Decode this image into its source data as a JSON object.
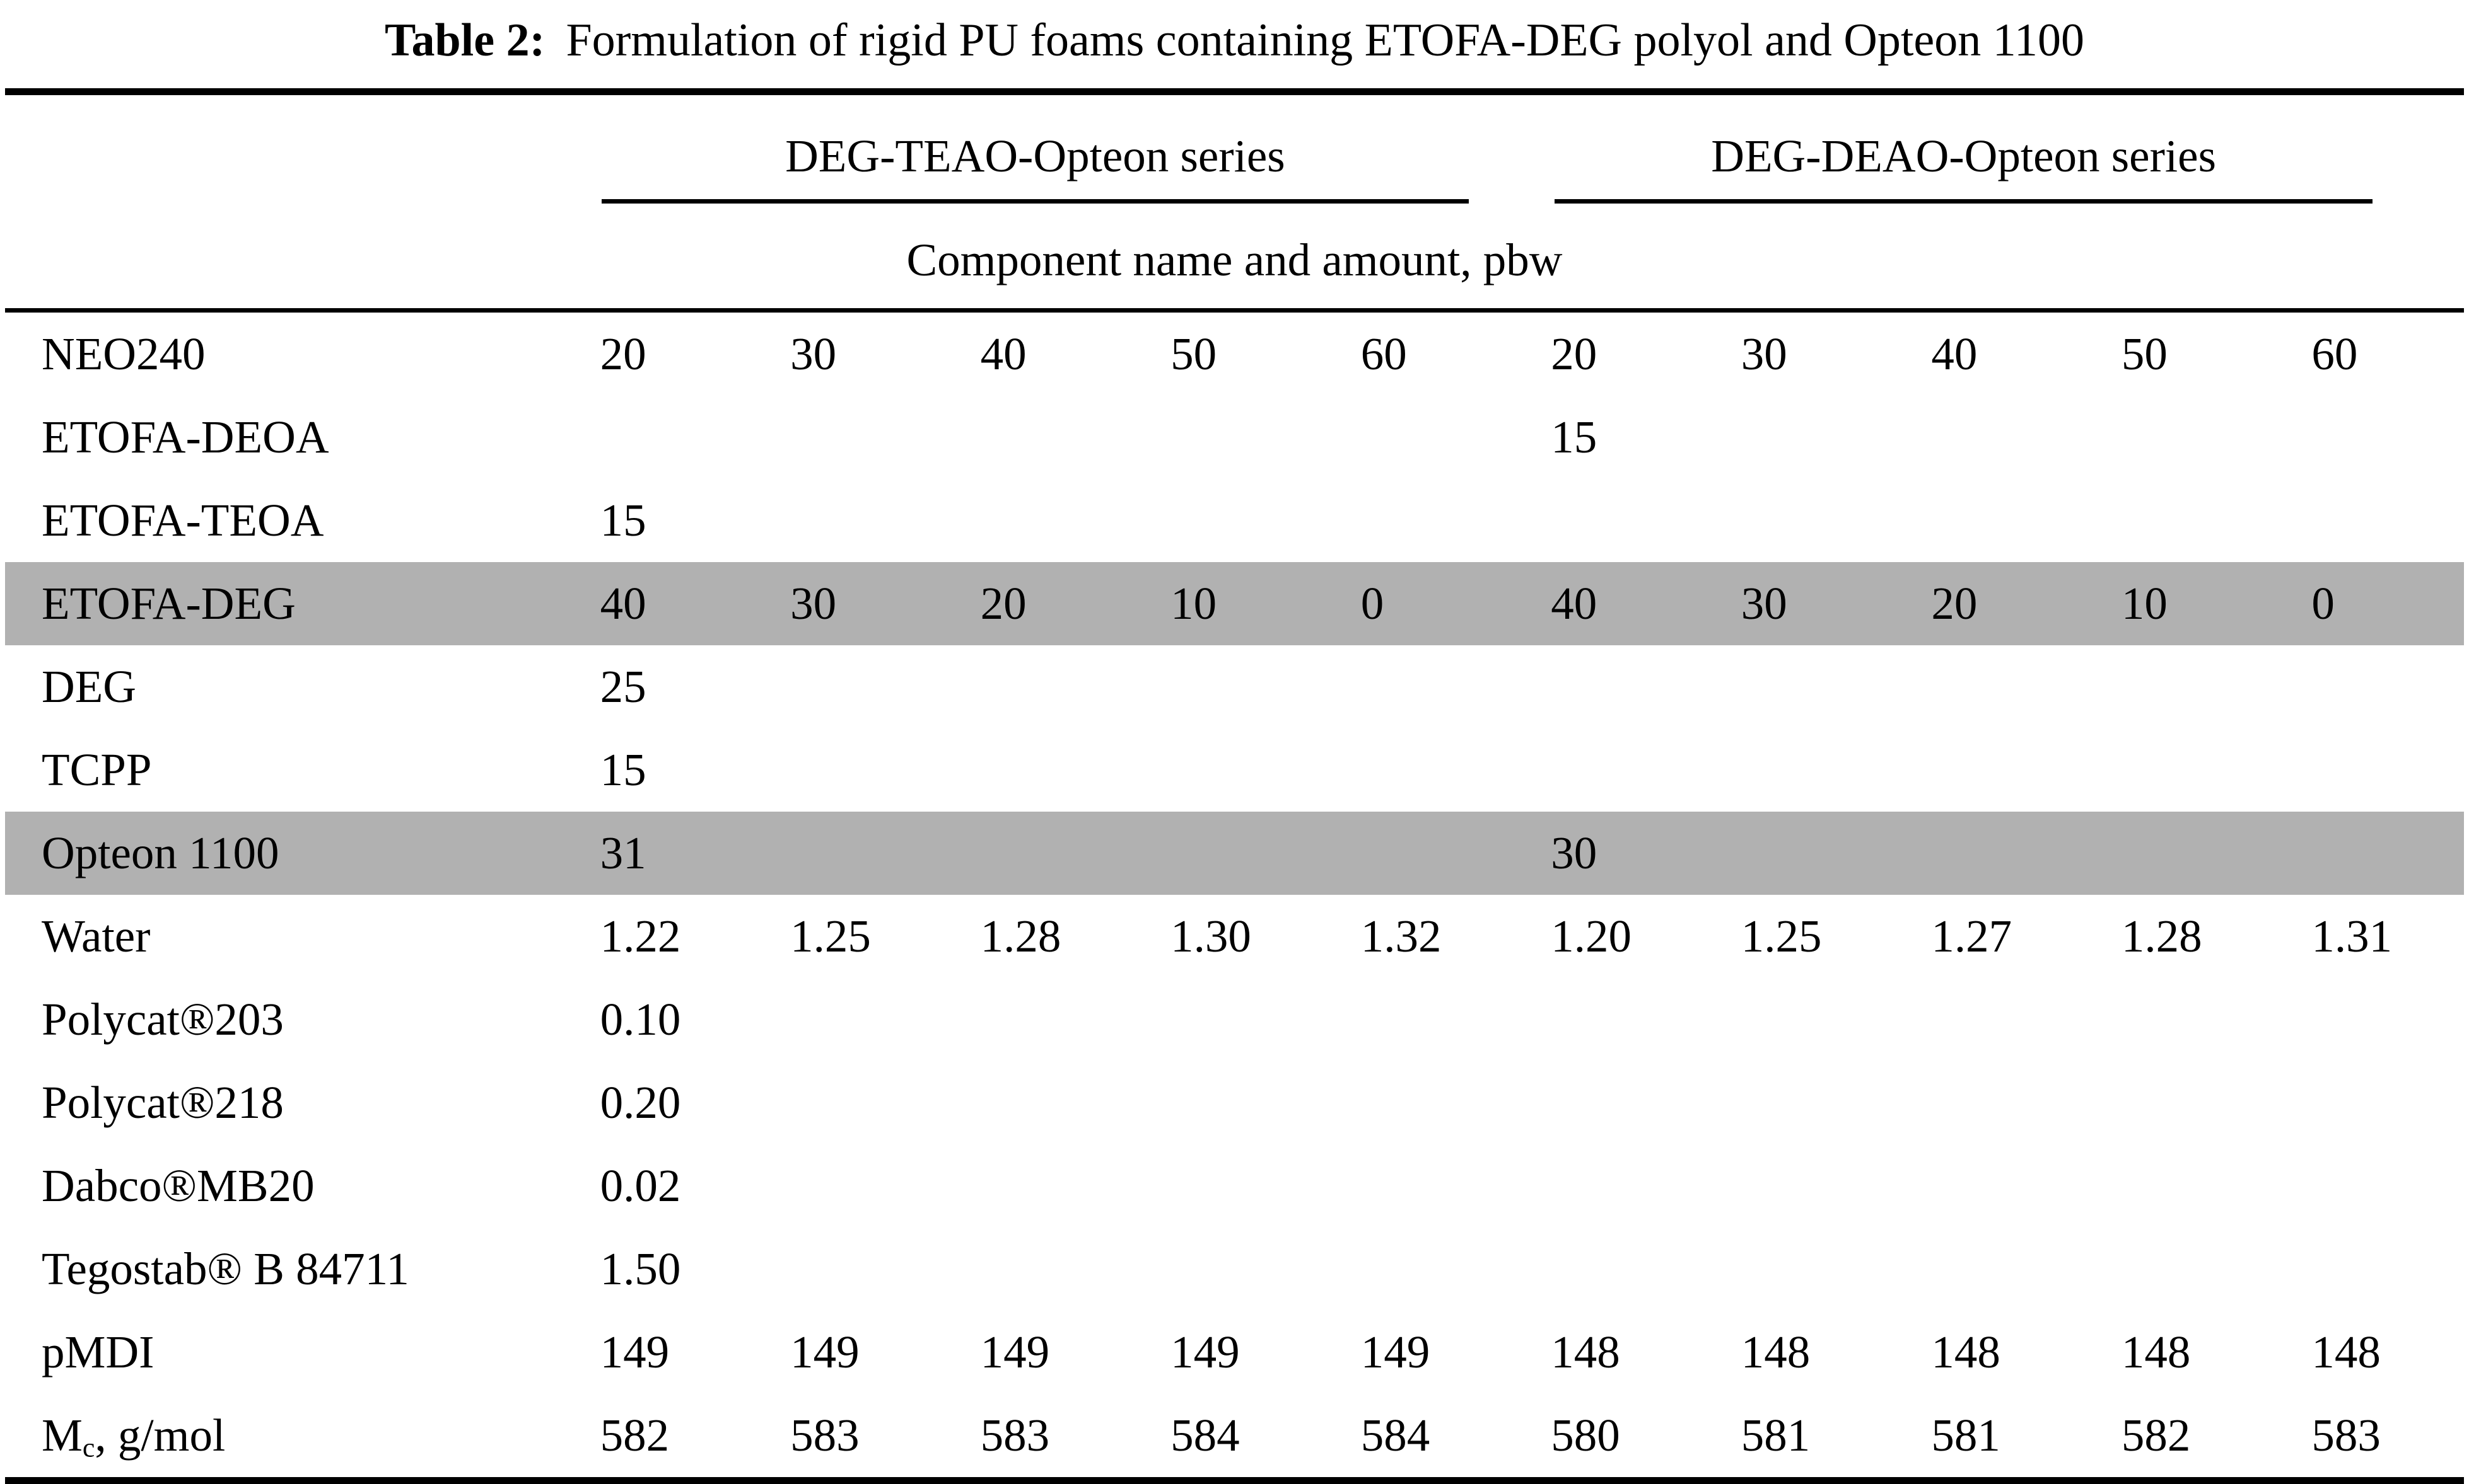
{
  "title": {
    "label": "Table 2:",
    "text": "Formulation of rigid PU foams containing ETOFA-DEG polyol and Opteon 1100"
  },
  "table": {
    "highlight_color": "#b1b1b1",
    "group_headers": [
      {
        "label": "DEG-TEAO-Opteon series"
      },
      {
        "label": "DEG-DEAO-Opteon series"
      }
    ],
    "subheader": "Component name and amount, pbw",
    "rows": [
      {
        "label": "NEO240",
        "values": [
          "20",
          "30",
          "40",
          "50",
          "60",
          "20",
          "30",
          "40",
          "50",
          "60"
        ]
      },
      {
        "label": "ETOFA-DEOA",
        "values": [
          "",
          "",
          "",
          "",
          "",
          "15",
          "",
          "",
          "",
          ""
        ]
      },
      {
        "label": "ETOFA-TEOA",
        "values": [
          "15",
          "",
          "",
          "",
          "",
          "",
          "",
          "",
          "",
          ""
        ]
      },
      {
        "label": "ETOFA-DEG",
        "values": [
          "40",
          "30",
          "20",
          "10",
          "0",
          "40",
          "30",
          "20",
          "10",
          "0"
        ]
      },
      {
        "label": "DEG",
        "values": [
          "25",
          "",
          "",
          "",
          "",
          "",
          "",
          "",
          "",
          ""
        ]
      },
      {
        "label": "TCPP",
        "values": [
          "15",
          "",
          "",
          "",
          "",
          "",
          "",
          "",
          "",
          ""
        ]
      },
      {
        "label": "Opteon 1100",
        "values": [
          "31",
          "",
          "",
          "",
          "",
          "30",
          "",
          "",
          "",
          ""
        ]
      },
      {
        "label": "Water",
        "values": [
          "1.22",
          "1.25",
          "1.28",
          "1.30",
          "1.32",
          "1.20",
          "1.25",
          "1.27",
          "1.28",
          "1.31"
        ]
      },
      {
        "label": "Polycat®203",
        "values": [
          "0.10",
          "",
          "",
          "",
          "",
          "",
          "",
          "",
          "",
          ""
        ]
      },
      {
        "label": "Polycat®218",
        "values": [
          "0.20",
          "",
          "",
          "",
          "",
          "",
          "",
          "",
          "",
          ""
        ]
      },
      {
        "label": "Dabco®MB20",
        "values": [
          "0.02",
          "",
          "",
          "",
          "",
          "",
          "",
          "",
          "",
          ""
        ]
      },
      {
        "label": "Tegostab® B 84711",
        "values": [
          "1.50",
          "",
          "",
          "",
          "",
          "",
          "",
          "",
          "",
          ""
        ]
      },
      {
        "label": "pMDI",
        "values": [
          "149",
          "149",
          "149",
          "149",
          "149",
          "148",
          "148",
          "148",
          "148",
          "148"
        ]
      },
      {
        "label_main": "M",
        "label_sub": "c",
        "label_rest": ", g/mol",
        "values": [
          "582",
          "583",
          "583",
          "584",
          "584",
          "580",
          "581",
          "581",
          "582",
          "583"
        ]
      }
    ]
  }
}
